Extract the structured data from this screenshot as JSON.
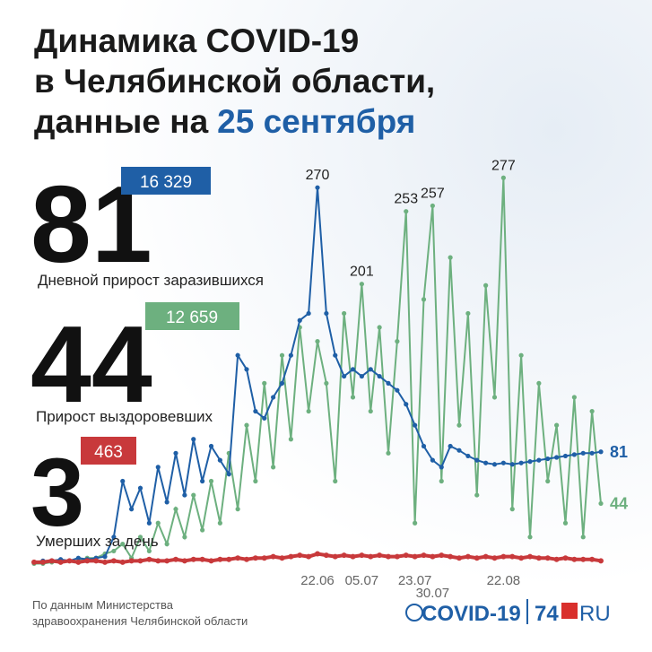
{
  "title_lines": [
    "Динамика COVID-19",
    "в Челябинской области,",
    "данные на"
  ],
  "title_date": "25 сентября",
  "summary": [
    {
      "label": "Дневной прирост заразившихся",
      "total": "16 329"
    },
    {
      "label": "Прирост выздоровевших",
      "total": "12 659"
    },
    {
      "label": "Умерших за день",
      "total": "463"
    }
  ],
  "footer": [
    "По данным Министерства",
    "здравоохранения Челябинской области"
  ],
  "logo": {
    "left": "COVID-19",
    "right": "74",
    "suffix": "RU"
  },
  "chart_data": {
    "type": "line",
    "categories": [
      null,
      null,
      null,
      null,
      null,
      null,
      null,
      null,
      null,
      null,
      null,
      null,
      null,
      null,
      null,
      null,
      null,
      null,
      null,
      null,
      null,
      null,
      null,
      null,
      null,
      null,
      null,
      null,
      null,
      null,
      null,
      null,
      "22.06",
      null,
      null,
      null,
      null,
      "05.07",
      null,
      null,
      null,
      null,
      null,
      "23.07",
      null,
      "30.07",
      null,
      null,
      null,
      null,
      null,
      null,
      null,
      "22.08",
      null,
      null,
      null,
      null,
      null,
      null,
      null,
      null,
      null,
      null,
      null
    ],
    "ylim": [
      0,
      290
    ],
    "series": [
      {
        "name": "Дневной прирост заразившихся",
        "color": "#1f5fa6",
        "values": [
          2,
          3,
          3,
          4,
          3,
          5,
          4,
          5,
          6,
          20,
          60,
          40,
          55,
          30,
          70,
          45,
          80,
          50,
          90,
          60,
          85,
          75,
          65,
          150,
          140,
          110,
          105,
          120,
          130,
          150,
          175,
          180,
          270,
          180,
          150,
          135,
          140,
          135,
          140,
          135,
          130,
          125,
          115,
          100,
          85,
          75,
          70,
          85,
          82,
          78,
          75,
          73,
          72,
          73,
          72,
          73,
          74,
          75,
          76,
          77,
          78,
          79,
          80,
          80,
          81
        ]
      },
      {
        "name": "Прирост выздоровевших",
        "color": "#6db07f",
        "values": [
          1,
          1,
          2,
          2,
          3,
          3,
          5,
          5,
          8,
          10,
          15,
          5,
          20,
          10,
          30,
          15,
          40,
          20,
          50,
          25,
          60,
          30,
          80,
          40,
          100,
          60,
          130,
          70,
          150,
          90,
          170,
          110,
          160,
          130,
          60,
          180,
          120,
          201,
          110,
          170,
          80,
          160,
          253,
          30,
          190,
          257,
          60,
          220,
          100,
          180,
          50,
          200,
          120,
          277,
          40,
          150,
          20,
          130,
          60,
          100,
          30,
          120,
          20,
          110,
          44
        ]
      },
      {
        "name": "Умерших за день",
        "color": "#c8393b",
        "values": [
          2,
          2,
          3,
          2,
          3,
          2,
          3,
          3,
          2,
          3,
          2,
          3,
          3,
          4,
          3,
          3,
          4,
          3,
          4,
          4,
          3,
          4,
          4,
          5,
          4,
          5,
          5,
          6,
          5,
          6,
          7,
          6,
          8,
          7,
          6,
          7,
          6,
          7,
          6,
          7,
          6,
          6,
          7,
          6,
          7,
          6,
          7,
          6,
          5,
          6,
          5,
          6,
          5,
          6,
          6,
          5,
          6,
          5,
          5,
          4,
          5,
          4,
          4,
          4,
          3
        ]
      }
    ]
  }
}
